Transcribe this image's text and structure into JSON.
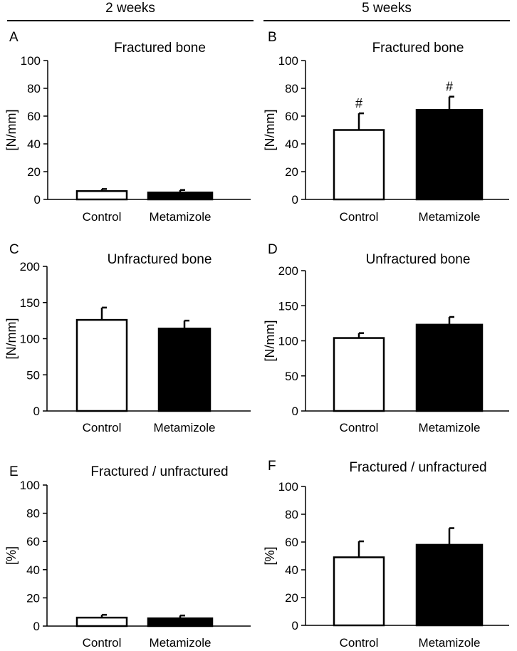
{
  "column_headers": [
    "2 weeks",
    "5 weeks"
  ],
  "colors": {
    "control_fill": "#ffffff",
    "metamizole_fill": "#000000",
    "stroke": "#000000"
  },
  "chart_data": [
    {
      "panel_letter": "A",
      "type": "bar",
      "title": "Fractured bone",
      "ylabel": "[N/mm]",
      "ylim": [
        0,
        100
      ],
      "yticks": [
        0,
        20,
        40,
        60,
        80,
        100
      ],
      "categories": [
        "Control",
        "Metamizole"
      ],
      "values": [
        6,
        5
      ],
      "error_plus": [
        1.5,
        1.8
      ],
      "annotations": [
        "",
        ""
      ]
    },
    {
      "panel_letter": "B",
      "type": "bar",
      "title": "Fractured bone",
      "ylabel": "[N/mm]",
      "ylim": [
        0,
        100
      ],
      "yticks": [
        0,
        20,
        40,
        60,
        80,
        100
      ],
      "categories": [
        "Control",
        "Metamizole"
      ],
      "values": [
        50,
        64.5
      ],
      "error_plus": [
        12,
        9.5
      ],
      "annotations": [
        "#",
        "#"
      ]
    },
    {
      "panel_letter": "C",
      "type": "bar",
      "title": "Unfractured bone",
      "ylabel": "[N/mm]",
      "ylim": [
        0,
        200
      ],
      "yticks": [
        0,
        50,
        100,
        150,
        200
      ],
      "categories": [
        "Control",
        "Metamizole"
      ],
      "values": [
        126,
        114
      ],
      "error_plus": [
        17,
        11
      ],
      "annotations": [
        "",
        ""
      ]
    },
    {
      "panel_letter": "D",
      "type": "bar",
      "title": "Unfractured bone",
      "ylabel": "[N/mm]",
      "ylim": [
        0,
        200
      ],
      "yticks": [
        0,
        50,
        100,
        150,
        200
      ],
      "categories": [
        "Control",
        "Metamizole"
      ],
      "values": [
        104,
        123
      ],
      "error_plus": [
        7,
        11
      ],
      "annotations": [
        "",
        ""
      ]
    },
    {
      "panel_letter": "E",
      "type": "bar",
      "title": "Fractured / unfractured",
      "ylabel": "[%]",
      "ylim": [
        0,
        100
      ],
      "yticks": [
        0,
        20,
        40,
        60,
        80,
        100
      ],
      "categories": [
        "Control",
        "Metamizole"
      ],
      "values": [
        6,
        5.5
      ],
      "error_plus": [
        2,
        2
      ],
      "annotations": [
        "",
        ""
      ]
    },
    {
      "panel_letter": "F",
      "type": "bar",
      "title": "Fractured / unfractured",
      "ylabel": "[%]",
      "ylim": [
        0,
        100
      ],
      "yticks": [
        0,
        20,
        40,
        60,
        80,
        100
      ],
      "categories": [
        "Control",
        "Metamizole"
      ],
      "values": [
        49,
        58
      ],
      "error_plus": [
        11.5,
        12
      ],
      "annotations": [
        "",
        ""
      ]
    }
  ]
}
